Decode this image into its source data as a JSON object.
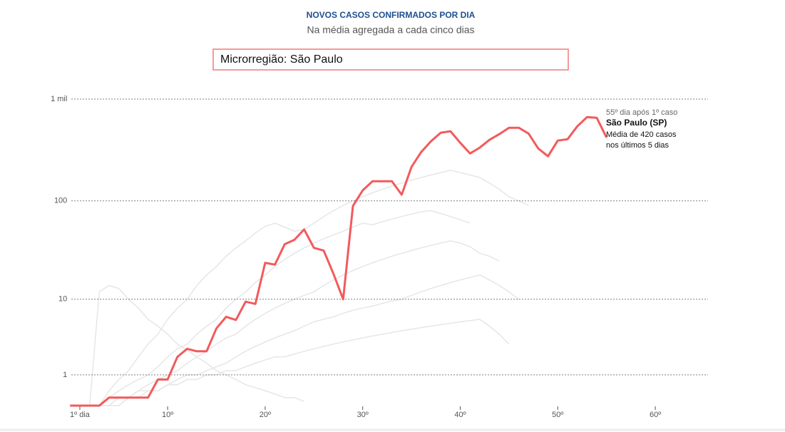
{
  "chart_data": {
    "type": "line",
    "title": "NOVOS CASOS CONFIRMADOS POR DIA",
    "subtitle": "Na média agregada a cada cinco dias",
    "selector": "Microrregião: São Paulo",
    "annotation": [
      "55º dia após 1º caso",
      "São Paulo (SP)",
      "Média de 420 casos",
      "nos últimos 5 dias"
    ],
    "yscale": "log1p",
    "grid": true,
    "xlim": [
      0,
      65
    ],
    "ylim": [
      0,
      1000
    ],
    "xticks": [
      {
        "value": 1,
        "label": "1º dia"
      },
      {
        "value": 10,
        "label": "10º"
      },
      {
        "value": 20,
        "label": "20º"
      },
      {
        "value": 30,
        "label": "30º"
      },
      {
        "value": 40,
        "label": "40º"
      },
      {
        "value": 50,
        "label": "50º"
      },
      {
        "value": 60,
        "label": "60º"
      }
    ],
    "yticks": [
      1,
      10,
      100,
      {
        "value": 1000,
        "label": "1 mil"
      }
    ],
    "x": [
      0,
      1,
      2,
      3,
      4,
      5,
      6,
      7,
      8,
      9,
      10,
      11,
      12,
      13,
      14,
      15,
      16,
      17,
      18,
      19,
      20,
      21,
      22,
      23,
      24,
      25,
      26,
      27,
      28,
      29,
      30,
      31,
      32,
      33,
      34,
      35,
      36,
      37,
      38,
      39,
      40,
      41,
      42,
      43,
      44,
      45,
      46,
      47,
      48,
      49,
      50,
      51,
      52,
      53,
      54,
      55
    ],
    "background_color": "#e6e6e6",
    "background_series": [
      [
        0,
        0,
        0,
        12,
        14,
        13,
        10,
        8,
        6,
        5,
        4,
        3,
        2.5,
        2,
        1.6,
        1.2,
        1,
        0.8,
        0.6,
        0.5,
        0.4,
        0.3,
        0.2,
        0.2,
        0.1
      ],
      [
        0,
        0,
        0,
        0,
        0.2,
        0.4,
        0.6,
        0.8,
        1,
        1.4,
        2,
        2.6,
        3,
        4,
        5,
        6,
        8,
        10,
        12,
        15,
        18,
        22,
        26,
        30,
        34,
        38,
        42,
        46,
        50,
        55,
        60,
        58,
        62,
        66,
        70,
        74,
        78,
        80,
        75,
        70,
        65,
        60
      ],
      [
        0,
        0,
        0,
        0,
        0,
        0.2,
        0.2,
        0.4,
        0.6,
        0.8,
        1,
        1.2,
        1.6,
        2,
        2.4,
        3,
        3.6,
        4,
        5,
        6,
        7,
        8,
        9,
        10,
        11,
        12,
        14,
        16,
        18,
        20,
        22,
        24,
        26,
        28,
        30,
        32,
        34,
        36,
        38,
        40,
        38,
        35,
        30,
        28,
        25
      ],
      [
        0,
        0,
        0,
        0,
        0,
        0,
        0.2,
        0.2,
        0.4,
        0.4,
        0.6,
        0.8,
        1,
        1,
        1.2,
        1.4,
        1.6,
        2,
        2.4,
        2.8,
        3.2,
        3.6,
        4,
        4.4,
        5,
        5.6,
        6,
        6.4,
        7,
        7.6,
        8,
        8.4,
        9,
        9.6,
        10,
        11,
        12,
        13,
        14,
        15,
        16,
        17,
        18,
        16,
        14,
        12,
        10
      ],
      [
        0,
        0,
        0,
        0,
        0.2,
        0.2,
        0.2,
        0.4,
        0.4,
        0.4,
        0.6,
        0.6,
        0.8,
        0.8,
        1,
        1,
        1.2,
        1.2,
        1.4,
        1.6,
        1.8,
        2,
        2,
        2.2,
        2.4,
        2.6,
        2.8,
        3,
        3.2,
        3.4,
        3.6,
        3.8,
        4,
        4.2,
        4.4,
        4.6,
        4.8,
        5,
        5.2,
        5.4,
        5.6,
        5.8,
        6,
        5,
        4,
        3
      ],
      [
        0,
        0,
        0,
        0,
        0.4,
        0.8,
        1.2,
        2,
        3,
        4,
        6,
        8,
        10,
        14,
        18,
        22,
        28,
        34,
        40,
        48,
        56,
        60,
        55,
        50,
        52,
        60,
        70,
        80,
        90,
        100,
        110,
        120,
        130,
        140,
        150,
        160,
        170,
        180,
        190,
        200,
        190,
        180,
        170,
        150,
        130,
        110,
        100,
        90
      ]
    ],
    "series": [
      {
        "name": "São Paulo (SP)",
        "color": "#f25a5c",
        "values": [
          0,
          0,
          0,
          0,
          0.2,
          0.2,
          0.2,
          0.2,
          0.2,
          0.8,
          0.8,
          2,
          2.6,
          2.4,
          2.4,
          4.7,
          6.4,
          5.9,
          9.4,
          8.9,
          24,
          23,
          37,
          41,
          52,
          34,
          32,
          18.5,
          10,
          89,
          127,
          156,
          156,
          156,
          115,
          216,
          303,
          386,
          468,
          484,
          373,
          293,
          334,
          398,
          453,
          524,
          524,
          460,
          328,
          275,
          392,
          404,
          541,
          666,
          655,
          420
        ]
      }
    ]
  }
}
